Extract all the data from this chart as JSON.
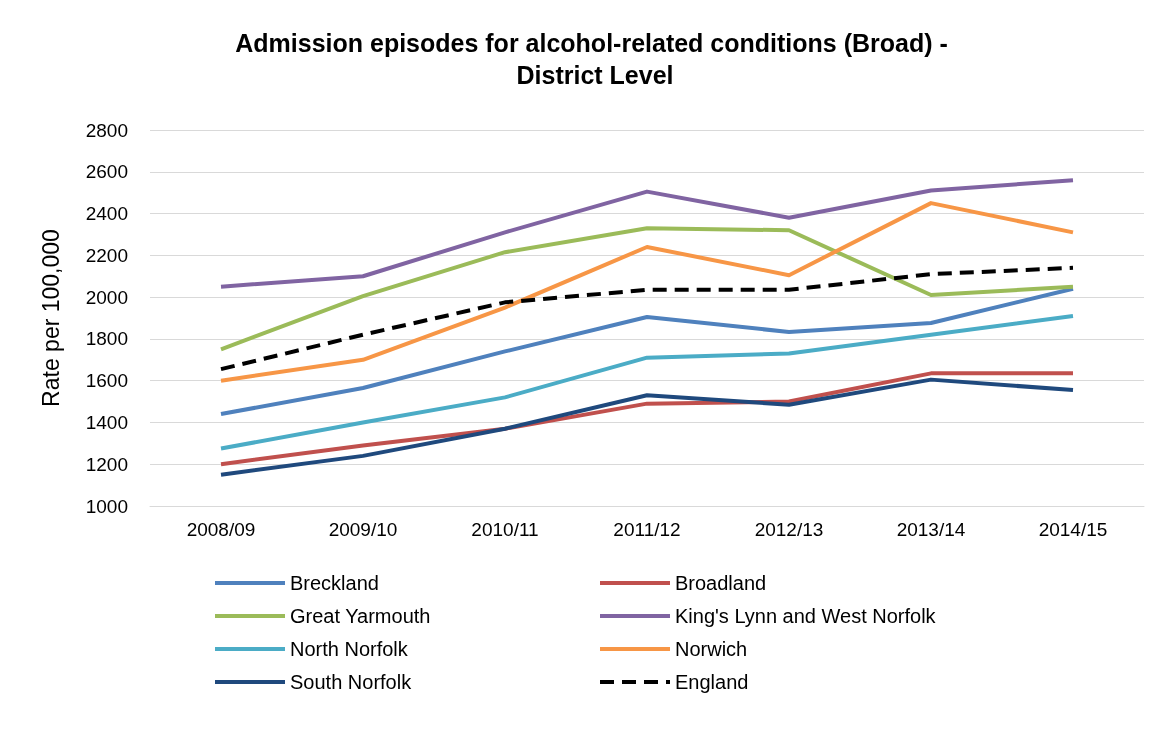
{
  "chart_data": {
    "type": "line",
    "title": "Admission episodes for alcohol-related conditions (Broad) - District Level",
    "ylabel": "Rate per 100,000",
    "categories": [
      "2008/09",
      "2009/10",
      "2010/11",
      "2011/12",
      "2012/13",
      "2013/14",
      "2014/15"
    ],
    "ylim": [
      1000,
      2800
    ],
    "yticks": [
      1000,
      1200,
      1400,
      1600,
      1800,
      2000,
      2200,
      2400,
      2600,
      2800
    ],
    "grid": "y",
    "legend": "bottom",
    "marker": "none",
    "line_style": "solid",
    "series": [
      {
        "name": "Breckland",
        "color": "#4f81bd",
        "values": [
          1440,
          1565,
          1740,
          1905,
          1833,
          1876,
          2040
        ]
      },
      {
        "name": "Broadland",
        "color": "#c0504d",
        "values": [
          1200,
          1290,
          1370,
          1490,
          1500,
          1635,
          1635
        ]
      },
      {
        "name": "Great Yarmouth",
        "color": "#9bbb59",
        "values": [
          1750,
          2005,
          2215,
          2330,
          2320,
          2010,
          2050
        ]
      },
      {
        "name": "King's Lynn and West Norfolk",
        "color": "#8064a2",
        "values": [
          2050,
          2100,
          2310,
          2505,
          2380,
          2510,
          2560
        ]
      },
      {
        "name": "North Norfolk",
        "color": "#4bacc6",
        "values": [
          1275,
          1400,
          1520,
          1710,
          1730,
          1820,
          1910
        ]
      },
      {
        "name": "Norwich",
        "color": "#f79646",
        "values": [
          1600,
          1700,
          1950,
          2240,
          2105,
          2450,
          2310
        ]
      },
      {
        "name": "South Norfolk",
        "color": "#1f497d",
        "values": [
          1150,
          1240,
          1370,
          1530,
          1485,
          1605,
          1555
        ]
      },
      {
        "name": "England",
        "color": "#000000",
        "line_style": "dashed",
        "values": [
          1655,
          1820,
          1975,
          2035,
          2035,
          2110,
          2140
        ]
      }
    ]
  }
}
